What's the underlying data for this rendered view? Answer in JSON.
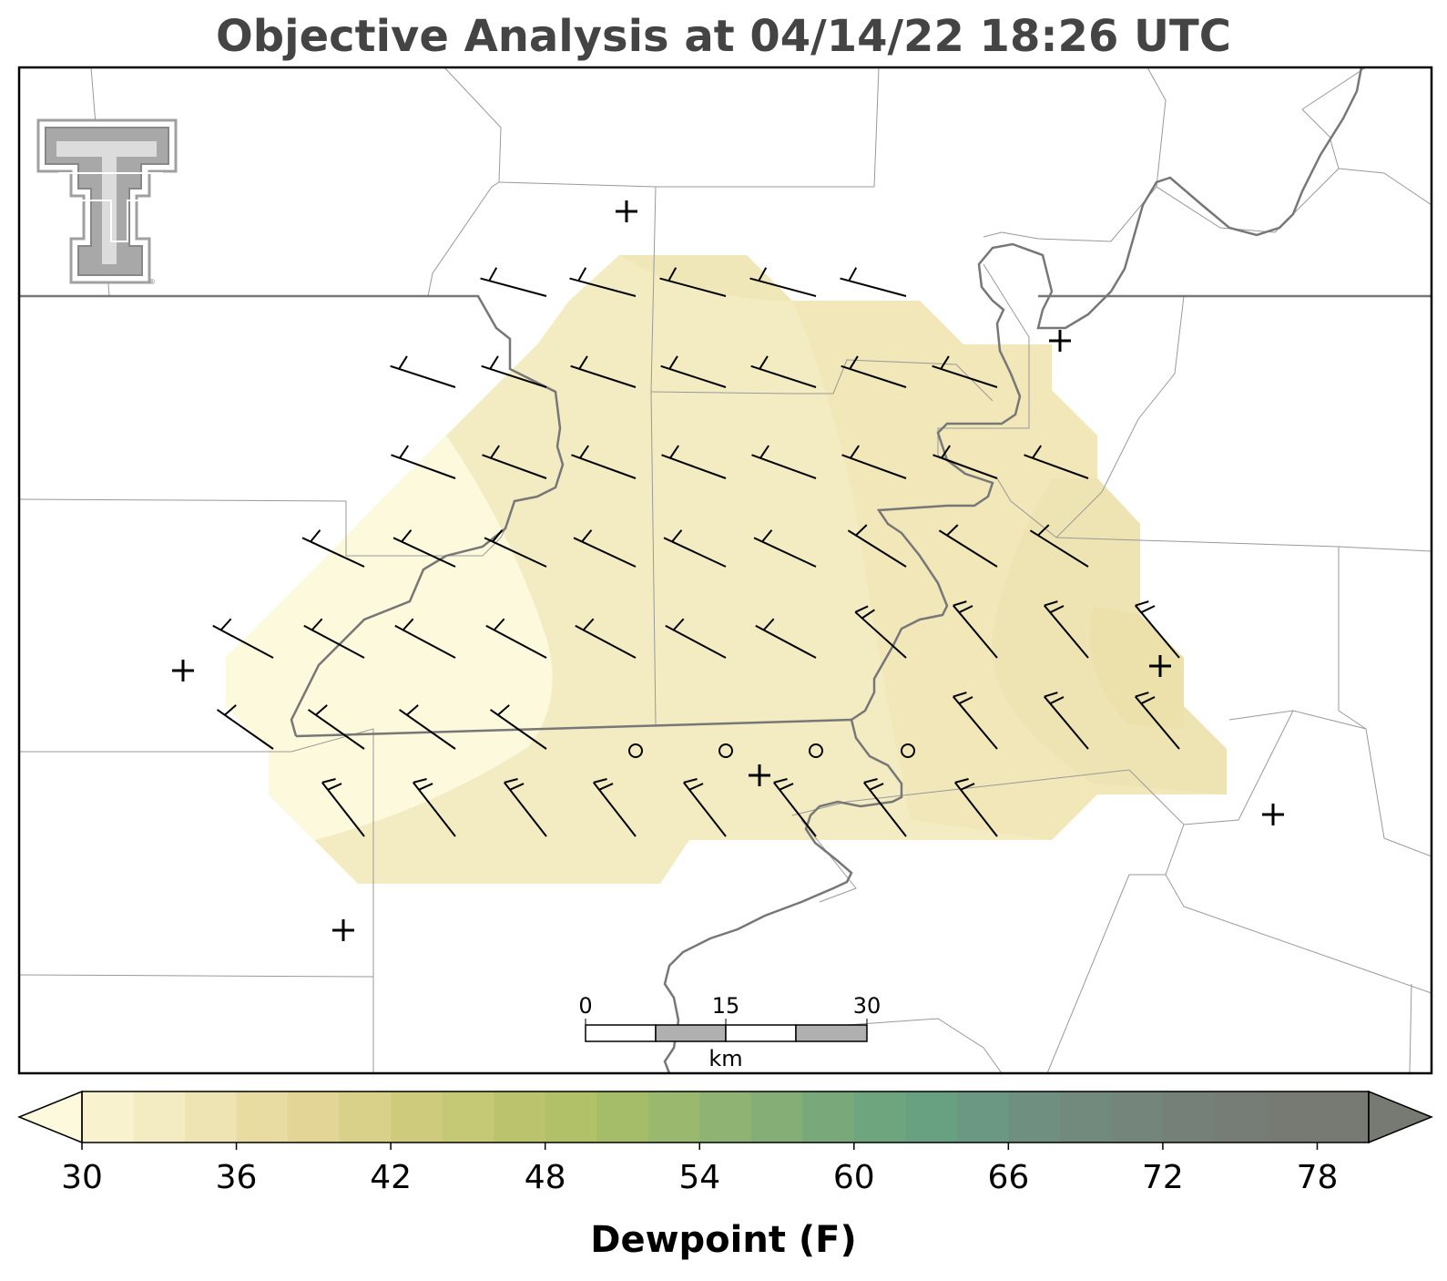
{
  "title": "Objective Analysis at 04/14/22 18:26 UTC",
  "variable": {
    "label": "Dewpoint (F)",
    "colorbar_ticks": [
      "30",
      "36",
      "42",
      "48",
      "54",
      "60",
      "66",
      "72",
      "78"
    ],
    "levels_min": 30,
    "levels_max": 80,
    "levels_step": 2,
    "colors": [
      "#fcf9dc",
      "#f8f3ce",
      "#f3ecc2",
      "#eee4b3",
      "#e8dca3",
      "#e2d596",
      "#d9d18a",
      "#cfcb7d",
      "#c5c874",
      "#bbc46c",
      "#b0c168",
      "#a5bd69",
      "#9ab86e",
      "#8fb372",
      "#84ae76",
      "#79a97a",
      "#6fa57e",
      "#68a182",
      "#6b9883",
      "#6f9080",
      "#728a7d",
      "#74857b",
      "#758079",
      "#767c76",
      "#767a73"
    ]
  },
  "scale_bar": {
    "unit": "km",
    "labels": [
      "0",
      "15",
      "30"
    ]
  },
  "logo": {
    "name": "Texas Tech University Double T",
    "text": "®"
  },
  "map": {
    "wind_barbs": [
      {
        "lon": 0.32,
        "lat": 0.74,
        "dir": 290,
        "speed": 15
      },
      {
        "lon": 0.4,
        "lat": 0.74,
        "dir": 290,
        "speed": 15
      }
    ],
    "stations": [
      {
        "type": "plus"
      },
      {
        "type": "circle"
      }
    ]
  }
}
